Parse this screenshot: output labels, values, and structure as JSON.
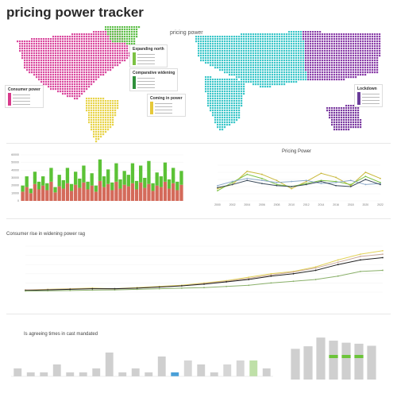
{
  "title": "pricing power tracker",
  "map": {
    "title": "pricing power",
    "legends": [
      {
        "heading": "Expanding north",
        "color": "#7dc243"
      },
      {
        "heading": "Comparative widening",
        "color": "#2f8f3a"
      },
      {
        "heading": "Consumer power",
        "color": "#d83b8c"
      },
      {
        "heading": "Coming in power",
        "color": "#e6c93a"
      },
      {
        "heading": "Lockdown",
        "color": "#6a3d9a"
      }
    ],
    "regions": {
      "north_america": "#d94a9e",
      "south_america": "#e8d44a",
      "greenland": "#5fbf4a",
      "europe_asia": "#3cc6c9",
      "east_asia": "#8a3fa8",
      "africa": "#3cc6c9",
      "australia": "#7b3aa0"
    }
  },
  "chart_data": [
    {
      "type": "bar",
      "series": [
        {
          "name": "",
          "color": "#d46a5a",
          "values": [
            12,
            18,
            10,
            22,
            15,
            20,
            14,
            25,
            11,
            19,
            16,
            23,
            13,
            21,
            17,
            24,
            15,
            20,
            12,
            26,
            18,
            22,
            14,
            25,
            16,
            21,
            19,
            23,
            15,
            24,
            17,
            22,
            13,
            20,
            18,
            25,
            16,
            23,
            14,
            21
          ]
        },
        {
          "name": "",
          "color": "#5bc236",
          "values": [
            8,
            14,
            6,
            16,
            10,
            12,
            9,
            18,
            7,
            15,
            11,
            20,
            9,
            17,
            12,
            22,
            10,
            16,
            8,
            28,
            14,
            19,
            10,
            24,
            12,
            18,
            15,
            26,
            11,
            22,
            13,
            30,
            10,
            17,
            14,
            25,
            12,
            20,
            11,
            18
          ]
        }
      ],
      "ylim": [
        0,
        60
      ],
      "yticks": [
        "0",
        "10000",
        "20000",
        "30000",
        "40000",
        "50000",
        "60000"
      ]
    },
    {
      "type": "line",
      "title": "Pricing Power",
      "categories": [
        "2000",
        "2002",
        "2004",
        "2006",
        "2008",
        "2010",
        "2012",
        "2014",
        "2016",
        "2018",
        "2020",
        "2022"
      ],
      "series": [
        {
          "name": "",
          "color": "#c9b83a",
          "values": [
            1.2,
            1.6,
            2.9,
            2.6,
            2.0,
            1.2,
            1.9,
            2.7,
            2.3,
            1.5,
            2.8,
            2.2
          ]
        },
        {
          "name": "",
          "color": "#7dc243",
          "values": [
            1.0,
            1.8,
            2.6,
            2.2,
            1.6,
            1.4,
            1.7,
            2.0,
            1.9,
            1.6,
            2.4,
            1.8
          ]
        },
        {
          "name": "",
          "color": "#8aa8c8",
          "values": [
            1.5,
            1.9,
            2.2,
            2.0,
            1.8,
            1.9,
            2.0,
            1.7,
            1.8,
            2.0,
            1.6,
            1.7
          ]
        },
        {
          "name": "",
          "color": "#3a4a5a",
          "values": [
            1.3,
            1.6,
            2.0,
            1.7,
            1.5,
            1.4,
            1.6,
            1.9,
            1.5,
            1.4,
            2.1,
            1.6
          ]
        }
      ],
      "ylim": [
        0,
        3.5
      ]
    },
    {
      "type": "line",
      "title": "Consumer rise in widening power rag",
      "series": [
        {
          "name": "",
          "color": "#e3d35a",
          "values": [
            0.2,
            0.25,
            0.3,
            0.35,
            0.3,
            0.4,
            0.5,
            0.6,
            0.8,
            1.0,
            1.3,
            1.6,
            1.8,
            2.2,
            2.8,
            3.3,
            3.6
          ]
        },
        {
          "name": "",
          "color": "#c9a89a",
          "values": [
            0.2,
            0.22,
            0.28,
            0.3,
            0.28,
            0.35,
            0.45,
            0.55,
            0.75,
            0.95,
            1.2,
            1.5,
            1.75,
            2.1,
            2.6,
            3.1,
            3.3
          ]
        },
        {
          "name": "",
          "color": "#222222",
          "values": [
            0.15,
            0.2,
            0.25,
            0.3,
            0.3,
            0.35,
            0.45,
            0.55,
            0.7,
            0.9,
            1.1,
            1.4,
            1.6,
            1.9,
            2.4,
            2.8,
            3.0
          ]
        },
        {
          "name": "",
          "color": "#8ab06a",
          "values": [
            0.1,
            0.12,
            0.15,
            0.18,
            0.2,
            0.25,
            0.3,
            0.35,
            0.4,
            0.5,
            0.6,
            0.8,
            0.95,
            1.1,
            1.4,
            1.8,
            1.9
          ]
        }
      ],
      "ylim": [
        0,
        4
      ]
    },
    {
      "type": "bar",
      "title": "Is agreeing times in cast mandated",
      "values": [
        2,
        1,
        1,
        3,
        1,
        1,
        2,
        6,
        1,
        2,
        1,
        5,
        1,
        4,
        3,
        1,
        3,
        4,
        4,
        2
      ],
      "colors": [
        "#cfcfcf",
        "#cfcfcf",
        "#cfcfcf",
        "#cfcfcf",
        "#cfcfcf",
        "#cfcfcf",
        "#cfcfcf",
        "#cfcfcf",
        "#cfcfcf",
        "#cfcfcf",
        "#cfcfcf",
        "#cfcfcf",
        "#4aa0d8",
        "#d6d6d6",
        "#cfcfcf",
        "#cfcfcf",
        "#d6d6d6",
        "#d6d6d6",
        "#bfe0a8",
        "#cfcfcf"
      ],
      "ylim": [
        0,
        8
      ]
    },
    {
      "type": "bar",
      "values": [
        6.0,
        6.5,
        8.2,
        7.6,
        7.2,
        7.0,
        6.6
      ],
      "highlight": [
        0,
        0,
        0,
        4.5,
        4.5,
        4.5,
        0
      ],
      "colors": [
        "#cfcfcf",
        "#cfcfcf",
        "#cfcfcf",
        "#cfcfcf",
        "#cfcfcf",
        "#cfcfcf",
        "#cfcfcf"
      ],
      "highlight_color": "#6cc43a",
      "ylim": [
        0,
        9
      ]
    }
  ]
}
